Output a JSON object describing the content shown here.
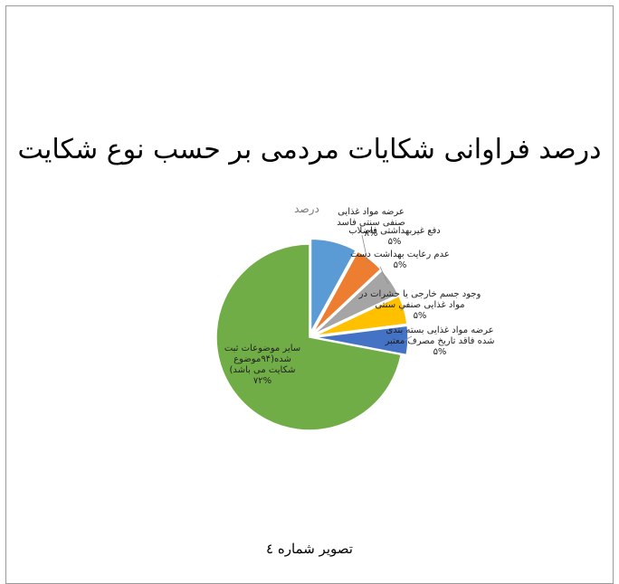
{
  "chart_data": {
    "type": "pie",
    "title": "درصد فراوانی شکایات مردمی بر حسب نوع شکایت",
    "series_name": "درصد",
    "slices": [
      {
        "label_lines": [
          "عرضه مواد غذایی",
          "صنفی سنتی فاسد",
          "۸%"
        ],
        "value": 8,
        "color": "#5b9bd5"
      },
      {
        "label_lines": [
          "دفع غیربهداشتی فاضلاب",
          "۵%"
        ],
        "value": 5,
        "color": "#ed7d31"
      },
      {
        "label_lines": [
          "عدم رعایت بهداشت دست",
          "۵%"
        ],
        "value": 5,
        "color": "#a5a5a5"
      },
      {
        "label_lines": [
          "وجود جسم خارجی یا حشرات در",
          "مواد غذایی صنفی سنتی",
          "۵%"
        ],
        "value": 5,
        "color": "#ffc000"
      },
      {
        "label_lines": [
          "عرضه مواد غذایی بسته بندی",
          "شده فاقد تاریخ مصرف معتبر",
          "۵%"
        ],
        "value": 5,
        "color": "#4472c4"
      },
      {
        "label_lines": [
          "سایر موضوعات ثبت",
          "شده(۹۴موضوع",
          "شکایت می باشد)",
          "۷۲%"
        ],
        "value": 72,
        "color": "#70ad47"
      }
    ]
  },
  "caption": "تصویر شماره ٤"
}
